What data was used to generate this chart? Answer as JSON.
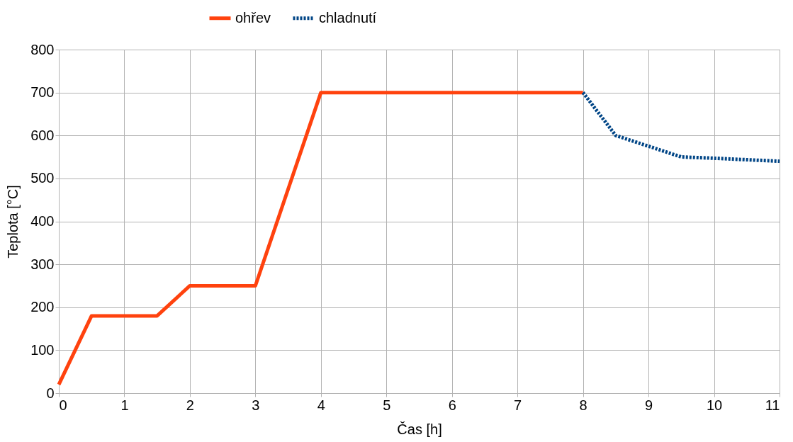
{
  "chart_data": {
    "type": "line",
    "xlabel": "Čas [h]",
    "ylabel": "Teplota [°C]",
    "xlim": [
      0,
      11
    ],
    "ylim": [
      0,
      800
    ],
    "xticks": [
      0,
      1,
      2,
      3,
      4,
      5,
      6,
      7,
      8,
      9,
      10,
      11
    ],
    "yticks": [
      0,
      100,
      200,
      300,
      400,
      500,
      600,
      700,
      800
    ],
    "grid": true,
    "legend": "top",
    "marker": "none",
    "series": [
      {
        "name": "ohřev",
        "color": "#ff420e",
        "line_style": "solid",
        "x": [
          0,
          0.5,
          1.5,
          2,
          3,
          4,
          8
        ],
        "values": [
          20,
          180,
          180,
          250,
          250,
          700,
          700
        ]
      },
      {
        "name": "chladnutí",
        "color": "#004586",
        "line_style": "dotted",
        "x": [
          8,
          8.5,
          9,
          9.5,
          10,
          11
        ],
        "values": [
          700,
          600,
          575,
          550,
          547,
          540
        ]
      }
    ]
  }
}
